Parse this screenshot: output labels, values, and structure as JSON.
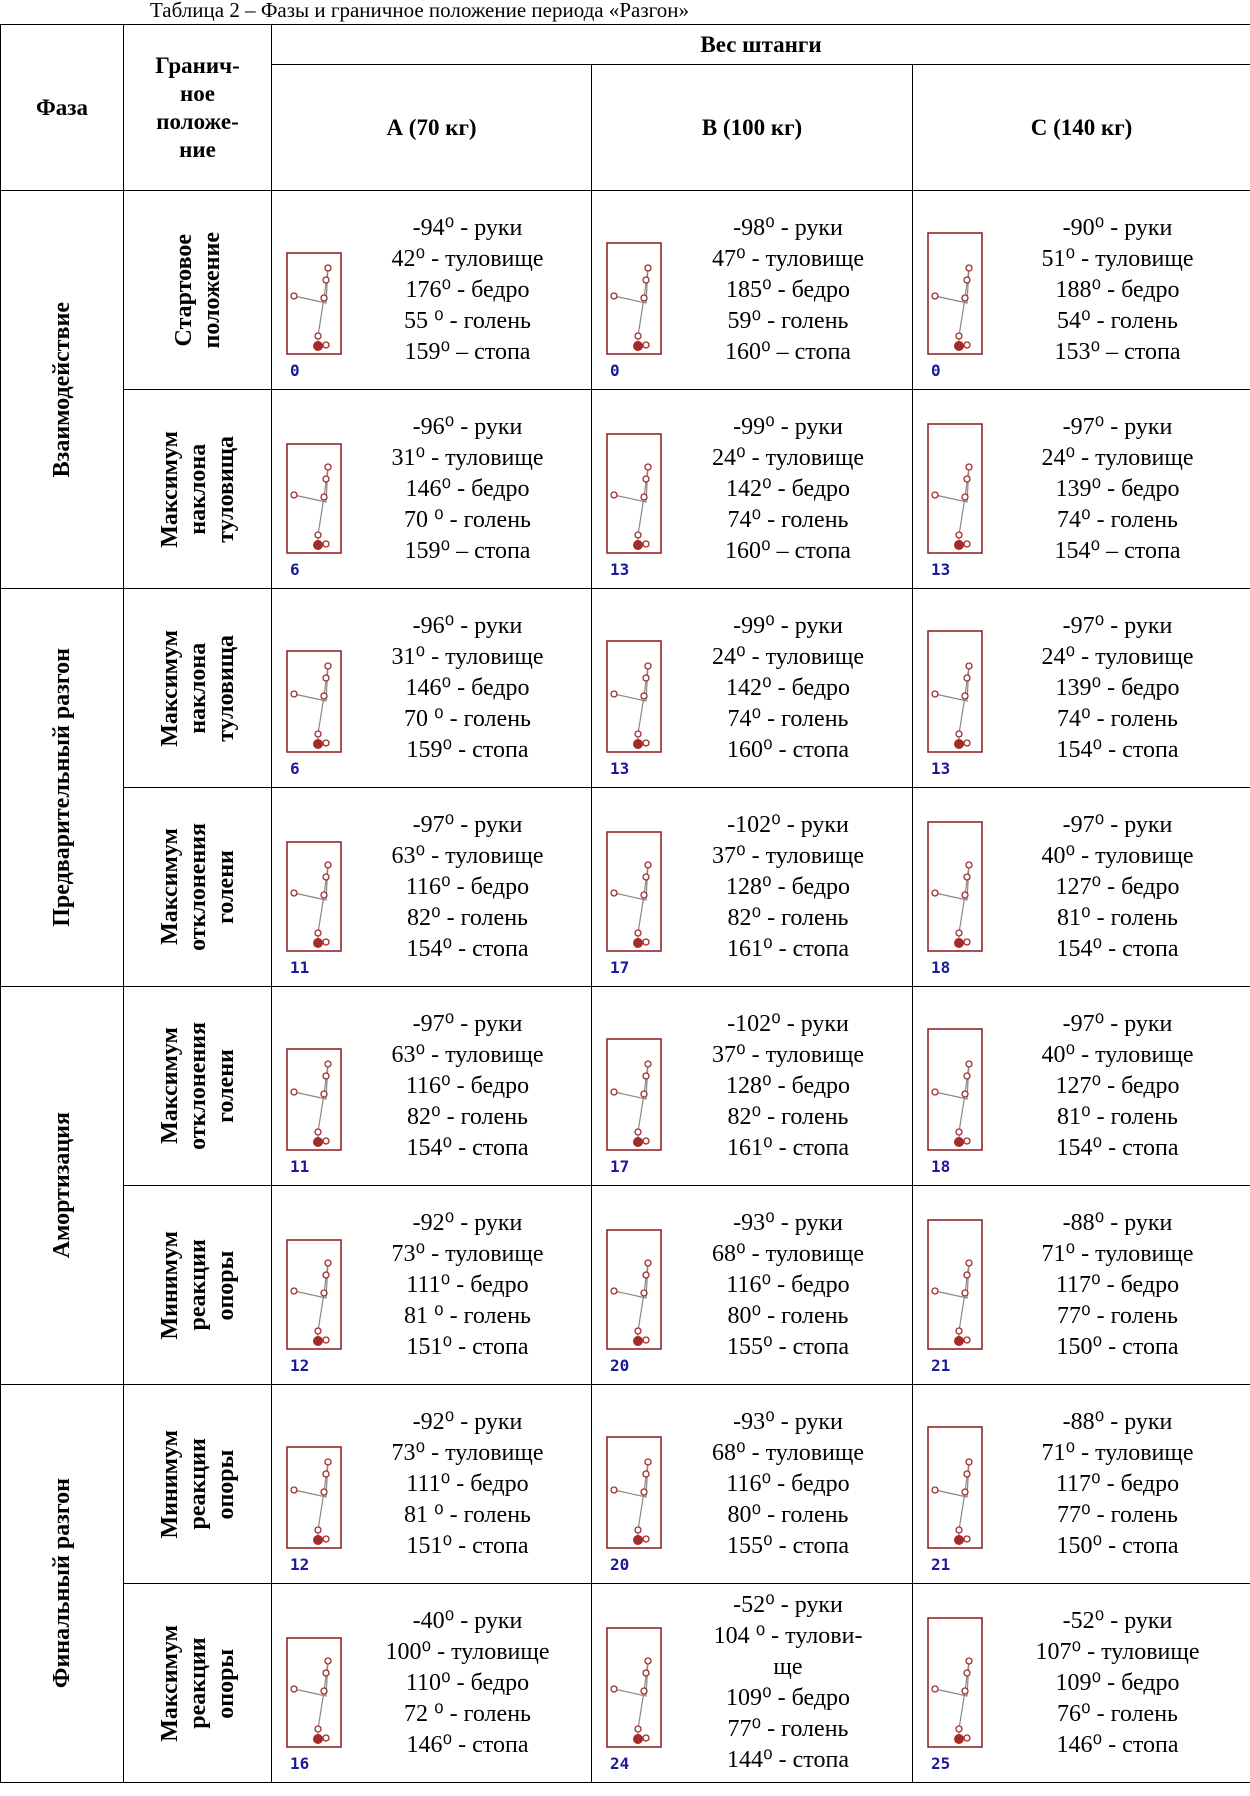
{
  "caption": "Таблица 2 – Фазы и граничное положение периода «Разгон»",
  "table": {
    "header": {
      "phase": "Фаза",
      "position": [
        "Гранич-",
        "ное",
        "положе-",
        "ние"
      ],
      "weight": "Вес штанги",
      "columns": [
        "А (70 кг)",
        "В (100 кг)",
        "С (140 кг)"
      ]
    },
    "groups": [
      {
        "phase": "Взаимодействие",
        "rows": [
          {
            "position": [
              "Стартовое",
              "положение"
            ],
            "cells": [
              {
                "frame": "0",
                "angles": [
                  "-94⁰ - руки",
                  "42⁰ - туловище",
                  "176⁰ - бедро",
                  "55 ⁰ - голень",
                  "159⁰ – стопа"
                ]
              },
              {
                "frame": "0",
                "angles": [
                  "-98⁰ - руки",
                  "47⁰ - туловище",
                  "185⁰ - бедро",
                  "59⁰ - голень",
                  "160⁰ – стопа"
                ]
              },
              {
                "frame": "0",
                "angles": [
                  "-90⁰ - руки",
                  "51⁰ - туловище",
                  "188⁰ - бедро",
                  "54⁰ - голень",
                  "153⁰ – стопа"
                ]
              }
            ]
          },
          {
            "position": [
              "Максимум",
              "наклона",
              "туловища"
            ],
            "cells": [
              {
                "frame": "6",
                "angles": [
                  "-96⁰ - руки",
                  "31⁰ - туловище",
                  "146⁰ - бедро",
                  "70 ⁰ - голень",
                  "159⁰ – стопа"
                ]
              },
              {
                "frame": "13",
                "angles": [
                  "-99⁰ - руки",
                  "24⁰ - туловище",
                  "142⁰ - бедро",
                  "74⁰ - голень",
                  "160⁰ – стопа"
                ]
              },
              {
                "frame": "13",
                "angles": [
                  "-97⁰ - руки",
                  "24⁰ - туловище",
                  "139⁰ - бедро",
                  "74⁰ - голень",
                  "154⁰ – стопа"
                ]
              }
            ]
          }
        ]
      },
      {
        "phase": "Предварительный разгон",
        "rows": [
          {
            "position": [
              "Максимум",
              "наклона",
              "туловища"
            ],
            "cells": [
              {
                "frame": "6",
                "angles": [
                  "-96⁰ - руки",
                  "31⁰ - туловище",
                  "146⁰ - бедро",
                  "70 ⁰ - голень",
                  "159⁰ - стопа"
                ]
              },
              {
                "frame": "13",
                "angles": [
                  "-99⁰ - руки",
                  "24⁰ - туловище",
                  "142⁰ - бедро",
                  "74⁰ - голень",
                  "160⁰ - стопа"
                ]
              },
              {
                "frame": "13",
                "angles": [
                  "-97⁰ - руки",
                  "24⁰ - туловище",
                  "139⁰ - бедро",
                  "74⁰ - голень",
                  "154⁰ - стопа"
                ]
              }
            ]
          },
          {
            "position": [
              "Максимум",
              "отклонения",
              "голени"
            ],
            "cells": [
              {
                "frame": "11",
                "angles": [
                  "-97⁰ - руки",
                  "63⁰ - туловище",
                  "116⁰ - бедро",
                  "82⁰ - голень",
                  "154⁰ - стопа"
                ]
              },
              {
                "frame": "17",
                "angles": [
                  "-102⁰ - руки",
                  "37⁰ - туловище",
                  "128⁰ - бедро",
                  "82⁰ - голень",
                  "161⁰ - стопа"
                ]
              },
              {
                "frame": "18",
                "angles": [
                  "-97⁰ - руки",
                  "40⁰ - туловище",
                  "127⁰ - бедро",
                  "81⁰ - голень",
                  "154⁰ - стопа"
                ]
              }
            ]
          }
        ]
      },
      {
        "phase": "Амортизация",
        "rows": [
          {
            "position": [
              "Максимум",
              "отклонения",
              "голени"
            ],
            "cells": [
              {
                "frame": "11",
                "angles": [
                  "-97⁰ - руки",
                  "63⁰ - туловище",
                  "116⁰ - бедро",
                  "82⁰ - голень",
                  "154⁰ - стопа"
                ]
              },
              {
                "frame": "17",
                "angles": [
                  "-102⁰ - руки",
                  "37⁰ - туловище",
                  "128⁰ - бедро",
                  "82⁰ - голень",
                  "161⁰ - стопа"
                ]
              },
              {
                "frame": "18",
                "angles": [
                  "-97⁰ - руки",
                  "40⁰ - туловище",
                  "127⁰ - бедро",
                  "81⁰ - голень",
                  "154⁰ - стопа"
                ]
              }
            ]
          },
          {
            "position": [
              "Минимум",
              "реакции",
              "опоры"
            ],
            "cells": [
              {
                "frame": "12",
                "angles": [
                  "-92⁰ - руки",
                  "73⁰ - туловище",
                  "111⁰ - бедро",
                  "81 ⁰ - голень",
                  "151⁰ - стопа"
                ]
              },
              {
                "frame": "20",
                "angles": [
                  "-93⁰ - руки",
                  "68⁰ - туловище",
                  "116⁰ - бедро",
                  "80⁰ - голень",
                  "155⁰ - стопа"
                ]
              },
              {
                "frame": "21",
                "angles": [
                  "-88⁰ - руки",
                  "71⁰ - туловище",
                  "117⁰ - бедро",
                  "77⁰ - голень",
                  "150⁰ - стопа"
                ]
              }
            ]
          }
        ]
      },
      {
        "phase": "Финальный разгон",
        "rows": [
          {
            "position": [
              "Минимум",
              "реакции",
              "опоры"
            ],
            "cells": [
              {
                "frame": "12",
                "angles": [
                  "-92⁰ - руки",
                  "73⁰ - туловище",
                  "111⁰ - бедро",
                  "81 ⁰ - голень",
                  "151⁰ - стопа"
                ]
              },
              {
                "frame": "20",
                "angles": [
                  "-93⁰ - руки",
                  "68⁰ - туловище",
                  "116⁰ - бедро",
                  "80⁰ - голень",
                  "155⁰ - стопа"
                ]
              },
              {
                "frame": "21",
                "angles": [
                  "-88⁰ - руки",
                  "71⁰ - туловище",
                  "117⁰ - бедро",
                  "77⁰ - голень",
                  "150⁰ - стопа"
                ]
              }
            ]
          },
          {
            "position": [
              "Максимум",
              "реакции",
              "опоры"
            ],
            "cells": [
              {
                "frame": "16",
                "angles": [
                  "-40⁰ - руки",
                  "100⁰ - туловище",
                  "110⁰ - бедро",
                  "72 ⁰ - голень",
                  "146⁰ - стопа"
                ]
              },
              {
                "frame": "24",
                "angles": [
                  "-52⁰ - руки",
                  "104 ⁰ - тулови-",
                  "ще",
                  "109⁰ - бедро",
                  "77⁰ - голень",
                  "144⁰ - стопа"
                ]
              },
              {
                "frame": "25",
                "angles": [
                  "-52⁰ - руки",
                  "107⁰ - туловище",
                  "109⁰ - бедро",
                  "76⁰ - голень",
                  "146⁰ - стопа"
                ]
              }
            ]
          }
        ]
      }
    ]
  }
}
